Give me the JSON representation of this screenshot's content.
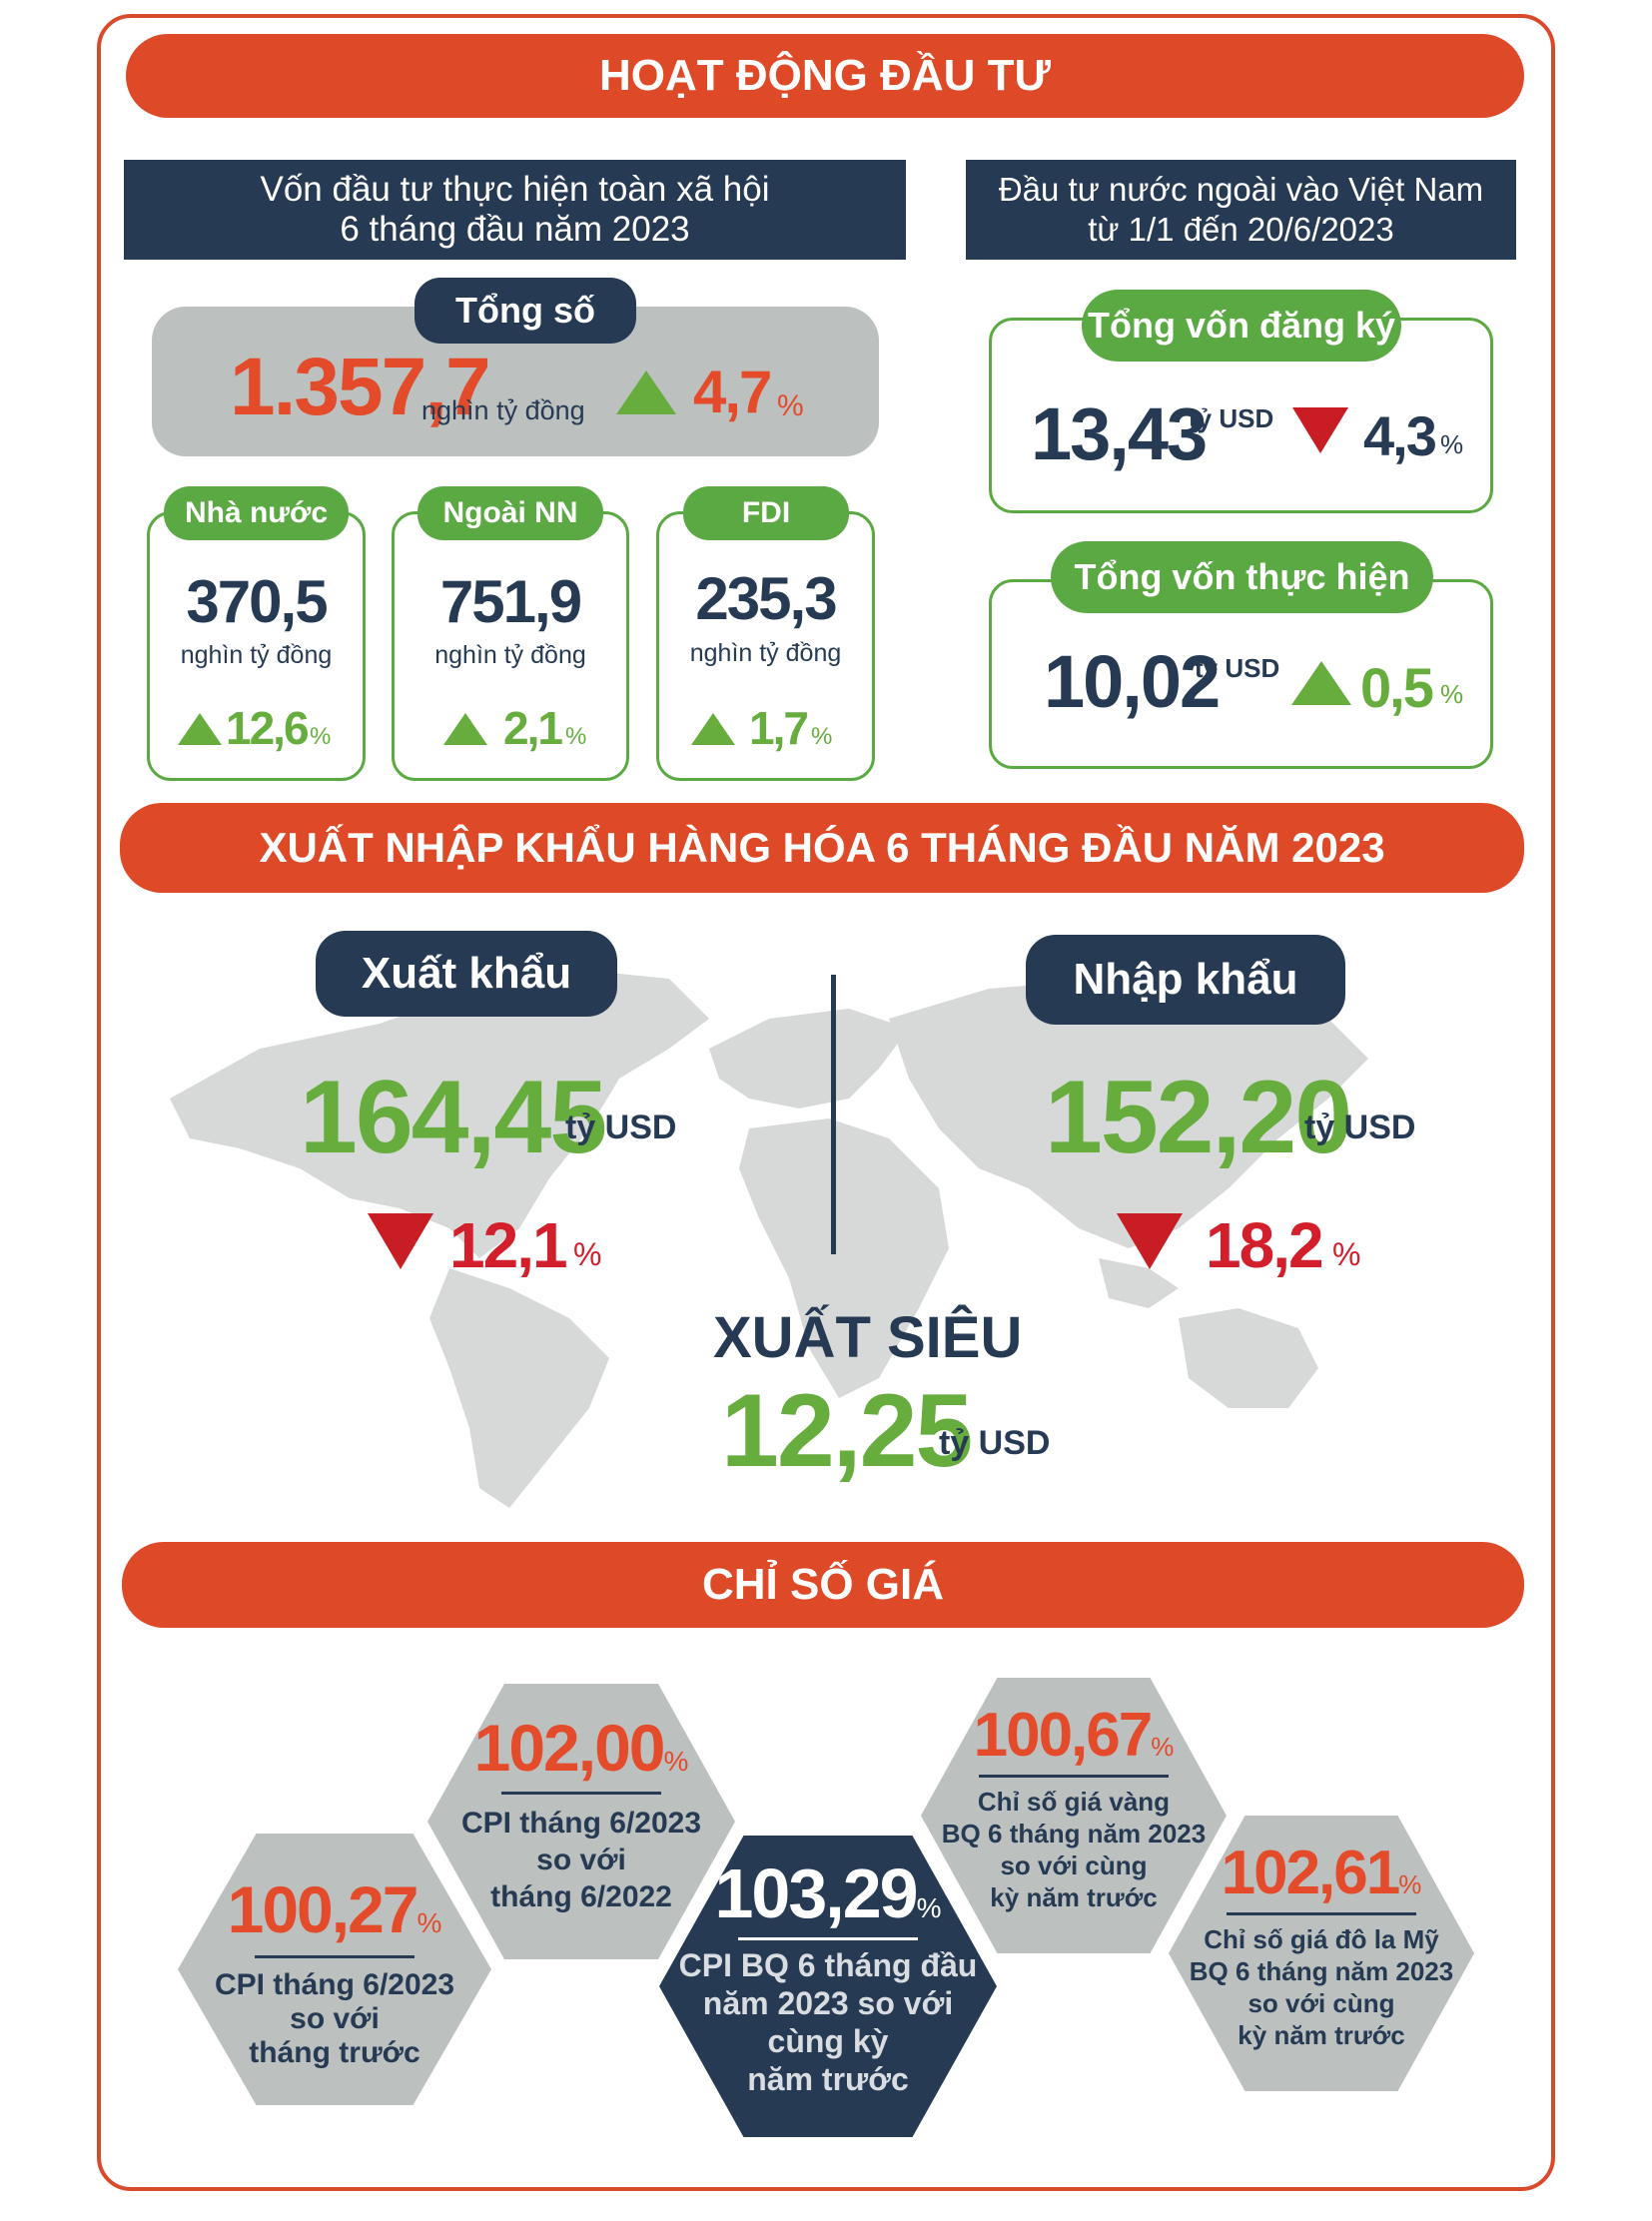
{
  "investment": {
    "banner": "HOẠT ĐỘNG ĐẦU TƯ",
    "social": {
      "title_line1": "Vốn đầu tư thực hiện toàn xã hội",
      "title_line2": "6 tháng đầu năm 2023",
      "total_label": "Tổng số",
      "total_value": "1.357,7",
      "total_unit": "nghìn tỷ đồng",
      "total_change": "4,7",
      "percent": "%",
      "cards": [
        {
          "label": "Nhà nước",
          "value": "370,5",
          "unit": "nghìn tỷ đồng",
          "change": "12,6"
        },
        {
          "label": "Ngoài NN",
          "value": "751,9",
          "unit": "nghìn tỷ đồng",
          "change": "2,1"
        },
        {
          "label": "FDI",
          "value": "235,3",
          "unit": "nghìn tỷ đồng",
          "change": "1,7"
        }
      ]
    },
    "foreign": {
      "title_line1": "Đầu tư nước ngoài vào Việt Nam",
      "title_line2": "từ 1/1 đến 20/6/2023",
      "registered": {
        "label": "Tổng vốn đăng ký",
        "value": "13,43",
        "unit": "tỷ USD",
        "change": "4,3",
        "direction": "down"
      },
      "realized": {
        "label": "Tổng vốn thực hiện",
        "value": "10,02",
        "unit": "tỷ USD",
        "change": "0,5",
        "direction": "up"
      }
    }
  },
  "trade": {
    "banner": "XUẤT NHẬP KHẨU HÀNG HÓA 6 THÁNG ĐẦU NĂM 2023",
    "export": {
      "label": "Xuất khẩu",
      "value": "164,45",
      "unit": "tỷ USD",
      "change": "12,1",
      "direction": "down"
    },
    "import": {
      "label": "Nhập khẩu",
      "value": "152,20",
      "unit": "tỷ USD",
      "change": "18,2",
      "direction": "down"
    },
    "surplus": {
      "label": "XUẤT SIÊU",
      "value": "12,25",
      "unit": "tỷ USD"
    }
  },
  "prices": {
    "banner": "CHỈ SỐ GIÁ",
    "items": [
      {
        "value": "100,27",
        "lines": [
          "CPI tháng 6/2023",
          "so với",
          "tháng trước"
        ]
      },
      {
        "value": "102,00",
        "lines": [
          "CPI tháng 6/2023",
          "so với",
          "tháng 6/2022"
        ]
      },
      {
        "value": "103,29",
        "lines": [
          "CPI BQ 6 tháng đầu",
          "năm 2023 so với",
          "cùng kỳ",
          "năm trước"
        ]
      },
      {
        "value": "100,67",
        "lines": [
          "Chỉ số giá vàng",
          "BQ 6 tháng năm 2023",
          "so với cùng",
          "kỳ năm trước"
        ]
      },
      {
        "value": "102,61",
        "lines": [
          "Chỉ số giá đô la Mỹ",
          "BQ 6 tháng năm 2023",
          "so với cùng",
          "kỳ năm trước"
        ]
      }
    ]
  },
  "colors": {
    "accent": "#de4a27",
    "navy": "#263a53",
    "green": "#5ba942",
    "red": "#c81d25",
    "gray": "#bcc0bf"
  },
  "icons": [
    "triangle-up-icon",
    "triangle-down-icon",
    "world-map"
  ]
}
